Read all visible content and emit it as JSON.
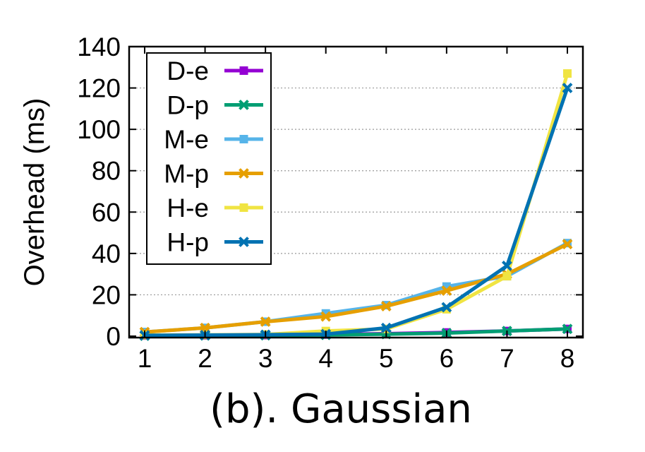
{
  "chart_data": {
    "type": "line",
    "title": "",
    "caption": "(b). Gaussian",
    "xlabel": "",
    "ylabel": "Overhead (ms)",
    "x": [
      1,
      2,
      3,
      4,
      5,
      6,
      7,
      8
    ],
    "xlim": [
      1,
      8
    ],
    "ylim": [
      0,
      140
    ],
    "xticks": [
      "1",
      "2",
      "3",
      "4",
      "5",
      "6",
      "7",
      "8"
    ],
    "yticks": [
      "0",
      "20",
      "40",
      "60",
      "80",
      "100",
      "120",
      "140"
    ],
    "grid": "horizontal dotted",
    "legend_position": "top-left",
    "series": [
      {
        "name": "D-e",
        "color": "#9400d3",
        "marker": "square",
        "values": [
          0.3,
          0.4,
          0.5,
          0.8,
          1.2,
          1.8,
          2.5,
          3.5
        ]
      },
      {
        "name": "D-p",
        "color": "#009e73",
        "marker": "x",
        "values": [
          0.2,
          0.3,
          0.4,
          0.6,
          1.0,
          1.5,
          2.5,
          3.5
        ]
      },
      {
        "name": "M-e",
        "color": "#56b4e9",
        "marker": "square",
        "values": [
          2,
          4,
          7,
          11,
          15,
          24,
          29,
          45
        ]
      },
      {
        "name": "M-p",
        "color": "#e69f00",
        "marker": "x",
        "values": [
          2,
          4,
          7,
          9.5,
          14.5,
          22,
          30,
          44.5
        ]
      },
      {
        "name": "H-e",
        "color": "#f0e442",
        "marker": "square",
        "values": [
          0.5,
          0.6,
          0.8,
          2.5,
          3.5,
          13,
          29,
          127
        ]
      },
      {
        "name": "H-p",
        "color": "#0072b2",
        "marker": "x",
        "values": [
          0.4,
          0.5,
          0.7,
          1.0,
          4.0,
          14,
          34,
          120
        ]
      }
    ]
  }
}
